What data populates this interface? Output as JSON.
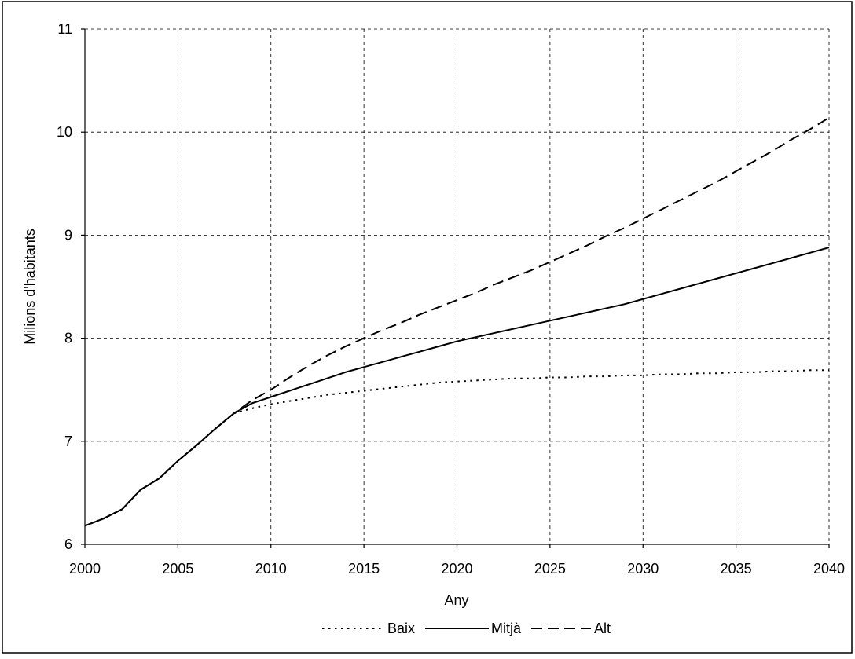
{
  "chart_data": {
    "type": "line",
    "xlabel": "Any",
    "ylabel": "Milions d'habitants",
    "xlim": [
      2000,
      2040
    ],
    "ylim": [
      6,
      11
    ],
    "xticks": [
      2000,
      2005,
      2010,
      2015,
      2020,
      2025,
      2030,
      2035,
      2040
    ],
    "yticks": [
      6,
      7,
      8,
      9,
      10,
      11
    ],
    "grid": true,
    "legend": "bottom",
    "line_color": "#000000",
    "x": [
      2000,
      2001,
      2002,
      2003,
      2004,
      2005,
      2006,
      2007,
      2008,
      2009,
      2010,
      2011,
      2012,
      2013,
      2014,
      2015,
      2016,
      2017,
      2018,
      2019,
      2020,
      2021,
      2022,
      2023,
      2024,
      2025,
      2026,
      2027,
      2028,
      2029,
      2030,
      2031,
      2032,
      2033,
      2034,
      2035,
      2036,
      2037,
      2038,
      2039,
      2040
    ],
    "series": [
      {
        "name": "Baix",
        "line_style": "dotted",
        "values": [
          6.18,
          6.25,
          6.34,
          6.53,
          6.64,
          6.81,
          6.96,
          7.12,
          7.27,
          7.32,
          7.36,
          7.39,
          7.42,
          7.45,
          7.47,
          7.49,
          7.51,
          7.53,
          7.55,
          7.57,
          7.58,
          7.59,
          7.6,
          7.61,
          7.61,
          7.62,
          7.62,
          7.63,
          7.63,
          7.64,
          7.64,
          7.65,
          7.65,
          7.66,
          7.66,
          7.67,
          7.67,
          7.68,
          7.68,
          7.69,
          7.69
        ]
      },
      {
        "name": "Mitjà",
        "line_style": "solid",
        "values": [
          6.18,
          6.25,
          6.34,
          6.53,
          6.64,
          6.81,
          6.96,
          7.12,
          7.27,
          7.37,
          7.43,
          7.49,
          7.55,
          7.61,
          7.67,
          7.72,
          7.77,
          7.82,
          7.87,
          7.92,
          7.97,
          8.01,
          8.05,
          8.09,
          8.13,
          8.17,
          8.21,
          8.25,
          8.29,
          8.33,
          8.38,
          8.43,
          8.48,
          8.53,
          8.58,
          8.63,
          8.68,
          8.73,
          8.78,
          8.83,
          8.88
        ]
      },
      {
        "name": "Alt",
        "line_style": "dashed",
        "values": [
          6.18,
          6.25,
          6.34,
          6.53,
          6.64,
          6.81,
          6.96,
          7.12,
          7.27,
          7.4,
          7.5,
          7.62,
          7.73,
          7.83,
          7.92,
          8.0,
          8.08,
          8.15,
          8.23,
          8.3,
          8.37,
          8.44,
          8.52,
          8.59,
          8.66,
          8.74,
          8.82,
          8.9,
          8.99,
          9.07,
          9.16,
          9.25,
          9.34,
          9.43,
          9.52,
          9.62,
          9.72,
          9.82,
          9.93,
          10.03,
          10.14
        ]
      }
    ]
  }
}
